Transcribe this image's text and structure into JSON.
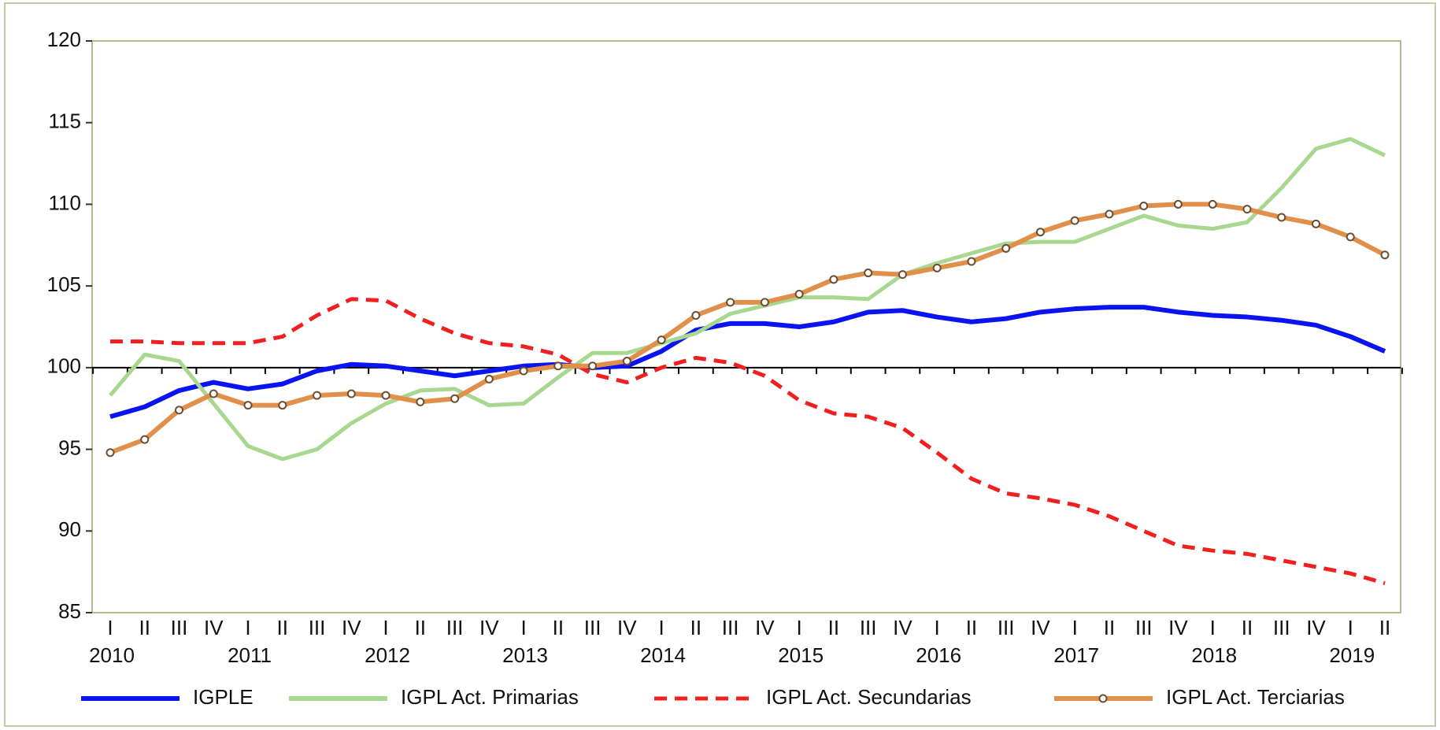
{
  "chart_data": {
    "type": "line",
    "categories": [
      "I",
      "II",
      "III",
      "IV",
      "I",
      "II",
      "III",
      "IV",
      "I",
      "II",
      "III",
      "IV",
      "I",
      "II",
      "III",
      "IV",
      "I",
      "II",
      "III",
      "IV",
      "I",
      "II",
      "III",
      "IV",
      "I",
      "II",
      "III",
      "IV",
      "I",
      "II",
      "III",
      "IV",
      "I",
      "II",
      "III",
      "IV",
      "I",
      "II"
    ],
    "years": [
      "2010",
      "2011",
      "2012",
      "2013",
      "2014",
      "2015",
      "2016",
      "2017",
      "2018",
      "2019"
    ],
    "ylim": [
      85,
      120
    ],
    "yticks": [
      85,
      90,
      95,
      100,
      105,
      110,
      115,
      120
    ],
    "series": [
      {
        "name": "IGPLE",
        "color": "#0a14f0",
        "style": "solid",
        "values": [
          97,
          97.6,
          98.6,
          99.1,
          98.7,
          99.0,
          99.8,
          100.2,
          100.1,
          99.8,
          99.5,
          99.8,
          100.1,
          100.2,
          100.0,
          100.1,
          101.0,
          102.3,
          102.7,
          102.7,
          102.5,
          102.8,
          103.4,
          103.5,
          103.1,
          102.8,
          103.0,
          103.4,
          103.6,
          103.7,
          103.7,
          103.4,
          103.2,
          103.1,
          102.9,
          102.6,
          101.9,
          101.0
        ]
      },
      {
        "name": "IGPL Act. Primarias",
        "color": "#a8d890",
        "style": "solid",
        "values": [
          98.3,
          100.8,
          100.4,
          97.8,
          95.2,
          94.4,
          95.0,
          96.6,
          97.8,
          98.6,
          98.7,
          97.7,
          97.8,
          99.4,
          100.9,
          100.9,
          101.5,
          102.1,
          103.3,
          103.8,
          104.3,
          104.3,
          104.2,
          105.7,
          106.4,
          107.0,
          107.6,
          107.7,
          107.7,
          108.5,
          109.3,
          108.7,
          108.5,
          108.9,
          111.0,
          113.4,
          114.0,
          113.0
        ]
      },
      {
        "name": "IGPL Act. Secundarias",
        "color": "#f02020",
        "style": "dashed",
        "values": [
          101.6,
          101.6,
          101.5,
          101.5,
          101.5,
          101.9,
          103.2,
          104.2,
          104.1,
          103.0,
          102.1,
          101.5,
          101.3,
          100.8,
          99.6,
          99.1,
          100.0,
          100.6,
          100.3,
          99.5,
          98.0,
          97.2,
          97.0,
          96.3,
          94.8,
          93.2,
          92.3,
          92.0,
          91.6,
          90.9,
          90.0,
          89.1,
          88.8,
          88.6,
          88.2,
          87.8,
          87.4,
          86.8
        ]
      },
      {
        "name": "IGPL Act. Terciarias",
        "color": "#e0904a",
        "style": "markers",
        "values": [
          94.8,
          95.6,
          97.4,
          98.4,
          97.7,
          97.7,
          98.3,
          98.4,
          98.3,
          97.9,
          98.1,
          99.3,
          99.8,
          100.1,
          100.1,
          100.4,
          101.7,
          103.2,
          104.0,
          104.0,
          104.5,
          105.4,
          105.8,
          105.7,
          106.1,
          106.5,
          107.3,
          108.3,
          109.0,
          109.4,
          109.9,
          110.0,
          110.0,
          109.7,
          109.2,
          108.8,
          108.0,
          106.9
        ]
      }
    ]
  }
}
